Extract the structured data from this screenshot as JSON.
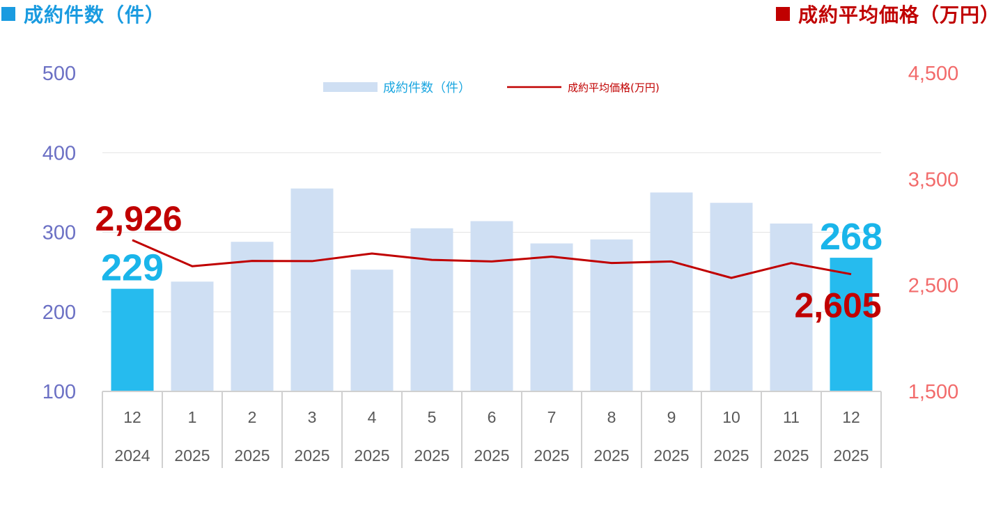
{
  "header": {
    "left_title": "成約件数（件）",
    "right_title": "成約平均価格（万円）"
  },
  "colors": {
    "bar": "#cfdff3",
    "bar_highlight": "#26bbee",
    "line": "#c00000",
    "left_axis": "#6b70c4",
    "right_axis": "#f26b6b"
  },
  "chart_data": {
    "type": "bar",
    "categories": [
      "12",
      "1",
      "2",
      "3",
      "4",
      "5",
      "6",
      "7",
      "8",
      "9",
      "10",
      "11",
      "12"
    ],
    "category_years": [
      "2024",
      "2025",
      "2025",
      "2025",
      "2025",
      "2025",
      "2025",
      "2025",
      "2025",
      "2025",
      "2025",
      "2025",
      "2025"
    ],
    "series": [
      {
        "name": "成約件数（件）",
        "type": "bar",
        "axis": "left",
        "values": [
          229,
          238,
          288,
          355,
          253,
          305,
          314,
          286,
          291,
          350,
          337,
          311,
          268
        ],
        "highlighted": [
          0,
          12
        ]
      },
      {
        "name": "成約平均価格(万円)",
        "type": "line",
        "axis": "right",
        "values": [
          2926,
          2680,
          2730,
          2728,
          2800,
          2740,
          2725,
          2770,
          2710,
          2725,
          2570,
          2710,
          2605
        ]
      }
    ],
    "ylim_left": [
      100,
      500
    ],
    "yticks_left": [
      "500",
      "400",
      "300",
      "200",
      "100"
    ],
    "ylim_right": [
      1500,
      4500
    ],
    "yticks_right": [
      "4,500",
      "3,500",
      "2,500",
      "1,500"
    ],
    "data_labels": {
      "count_first": "229",
      "count_last": "268",
      "price_first": "2,926",
      "price_last": "2,605"
    },
    "legend": "top-center",
    "grid": true
  }
}
